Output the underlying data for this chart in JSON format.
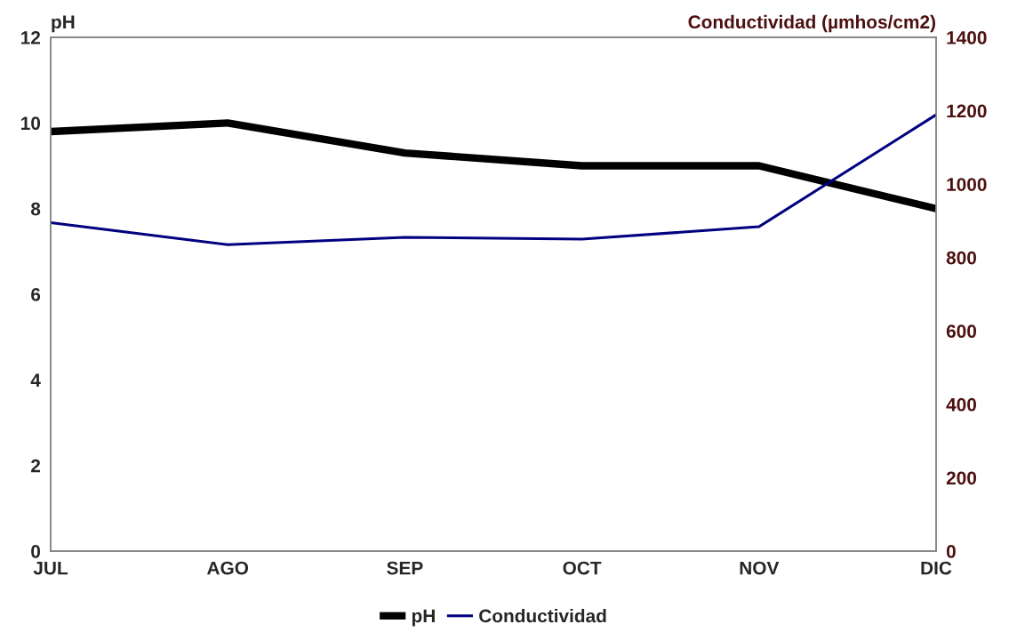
{
  "chart_data": {
    "type": "line",
    "categories": [
      "JUL",
      "AGO",
      "SEP",
      "OCT",
      "NOV",
      "DIC"
    ],
    "ylabel": "pH",
    "y2label": "Conductividad (µmhos/cm2)",
    "ylim": [
      0,
      12
    ],
    "yticks": [
      0,
      2,
      4,
      6,
      8,
      10,
      12
    ],
    "y2lim": [
      0,
      1400
    ],
    "y2ticks": [
      0,
      200,
      400,
      600,
      800,
      1000,
      1200,
      1400
    ],
    "series": [
      {
        "name": "pH",
        "color": "#000000",
        "values": [
          9.8,
          10.0,
          9.3,
          9.0,
          9.0,
          8.0
        ]
      },
      {
        "name": "Conductividad",
        "color": "#000080",
        "axis": "y2",
        "values": [
          895,
          835,
          855,
          850,
          884,
          1189
        ]
      }
    ],
    "grid": false,
    "legend": "bottom",
    "marker": "none",
    "line_style": "solid"
  }
}
